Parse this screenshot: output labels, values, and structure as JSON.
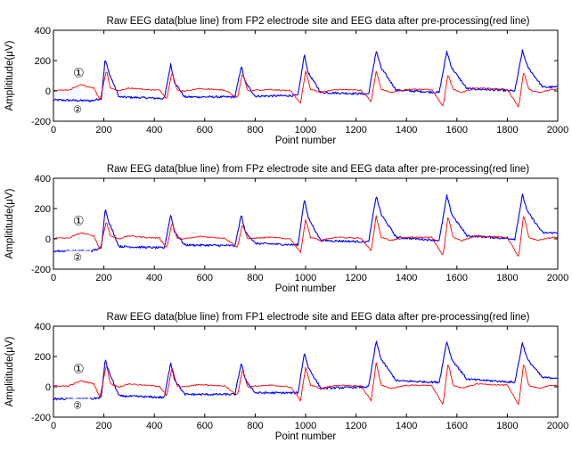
{
  "chart_data": [
    {
      "type": "line",
      "title": "Raw EEG data(blue line) from FP2 electrode site and EEG data after pre-processing(red line)",
      "xlabel": "Point number",
      "ylabel": "Amplititude(μV)",
      "xlim": [
        0,
        2000
      ],
      "ylim": [
        -200,
        400
      ],
      "xticks": [
        0,
        200,
        400,
        600,
        800,
        1000,
        1200,
        1400,
        1600,
        1800,
        2000
      ],
      "yticks": [
        -200,
        0,
        200,
        400
      ],
      "grid": false,
      "annotations": [
        "①",
        "②"
      ],
      "series": [
        {
          "color": "#0000ff",
          "x": [
            0,
            150,
            190,
            205,
            220,
            260,
            440,
            465,
            480,
            520,
            720,
            745,
            760,
            800,
            970,
            995,
            1010,
            1060,
            1250,
            1280,
            1300,
            1360,
            1530,
            1560,
            1580,
            1640,
            1830,
            1860,
            1880,
            1940,
            2000
          ],
          "y": [
            -60,
            -65,
            -50,
            210,
            120,
            -40,
            -50,
            175,
            60,
            -40,
            -40,
            165,
            60,
            -35,
            -30,
            240,
            120,
            -10,
            -20,
            265,
            150,
            5,
            -10,
            260,
            150,
            15,
            0,
            265,
            160,
            25,
            25
          ]
        },
        {
          "color": "#ff0000",
          "x": [
            0,
            60,
            110,
            160,
            185,
            210,
            225,
            260,
            300,
            360,
            420,
            450,
            470,
            490,
            520,
            580,
            680,
            730,
            750,
            770,
            800,
            860,
            940,
            980,
            1000,
            1020,
            1060,
            1120,
            1220,
            1260,
            1280,
            1300,
            1340,
            1400,
            1500,
            1545,
            1565,
            1585,
            1620,
            1680,
            1800,
            1845,
            1865,
            1885,
            1920,
            1980,
            2000
          ],
          "y": [
            5,
            5,
            40,
            20,
            -60,
            140,
            20,
            0,
            20,
            10,
            5,
            -50,
            130,
            5,
            0,
            15,
            5,
            -45,
            120,
            0,
            5,
            10,
            0,
            -80,
            130,
            10,
            -10,
            10,
            5,
            -70,
            130,
            10,
            -10,
            10,
            10,
            -100,
            110,
            10,
            -10,
            20,
            10,
            -110,
            130,
            10,
            -10,
            10,
            10
          ]
        }
      ]
    },
    {
      "type": "line",
      "title": "Raw EEG data(blue line) from FPz electrode site and EEG data after pre-processing(red line)",
      "xlabel": "Point number",
      "ylabel": "Amplititude(μV)",
      "xlim": [
        0,
        2000
      ],
      "ylim": [
        -200,
        400
      ],
      "xticks": [
        0,
        200,
        400,
        600,
        800,
        1000,
        1200,
        1400,
        1600,
        1800,
        2000
      ],
      "yticks": [
        -200,
        0,
        200,
        400
      ],
      "grid": false,
      "annotations": [
        "①",
        "②"
      ],
      "series": [
        {
          "color": "#0000ff",
          "x": [
            0,
            150,
            190,
            205,
            220,
            260,
            440,
            465,
            480,
            520,
            720,
            745,
            760,
            800,
            970,
            995,
            1010,
            1060,
            1250,
            1280,
            1300,
            1360,
            1530,
            1560,
            1580,
            1640,
            1830,
            1860,
            1880,
            1940,
            2000
          ],
          "y": [
            -80,
            -80,
            -60,
            200,
            110,
            -50,
            -60,
            160,
            50,
            -40,
            -45,
            160,
            50,
            -30,
            -40,
            265,
            140,
            -10,
            -20,
            285,
            160,
            10,
            -10,
            285,
            160,
            20,
            0,
            290,
            180,
            40,
            40
          ]
        },
        {
          "color": "#ff0000",
          "x": [
            0,
            60,
            110,
            160,
            185,
            210,
            225,
            260,
            300,
            360,
            420,
            450,
            470,
            490,
            520,
            580,
            680,
            730,
            750,
            770,
            800,
            860,
            940,
            980,
            1000,
            1020,
            1060,
            1120,
            1220,
            1260,
            1280,
            1300,
            1340,
            1400,
            1500,
            1545,
            1565,
            1585,
            1620,
            1680,
            1800,
            1845,
            1865,
            1885,
            1920,
            1980,
            2000
          ],
          "y": [
            5,
            5,
            40,
            20,
            -70,
            120,
            20,
            0,
            20,
            10,
            5,
            -60,
            110,
            5,
            0,
            15,
            5,
            -55,
            100,
            0,
            5,
            10,
            0,
            -90,
            130,
            10,
            -10,
            10,
            5,
            -80,
            150,
            10,
            -10,
            10,
            10,
            -110,
            150,
            10,
            -10,
            20,
            10,
            -120,
            160,
            10,
            -10,
            10,
            10
          ]
        }
      ]
    },
    {
      "type": "line",
      "title": "Raw EEG data(blue line) from FP1 electrode site and EEG data after pre-processing(red line)",
      "xlabel": "Point number",
      "ylabel": "Amplititude(μV)",
      "xlim": [
        0,
        2000
      ],
      "ylim": [
        -200,
        400
      ],
      "xticks": [
        0,
        200,
        400,
        600,
        800,
        1000,
        1200,
        1400,
        1600,
        1800,
        2000
      ],
      "yticks": [
        -200,
        0,
        200,
        400
      ],
      "grid": false,
      "annotations": [
        "①",
        "②"
      ],
      "series": [
        {
          "color": "#0000ff",
          "x": [
            0,
            150,
            190,
            205,
            220,
            260,
            440,
            465,
            480,
            520,
            720,
            745,
            760,
            800,
            970,
            995,
            1010,
            1060,
            1250,
            1280,
            1300,
            1360,
            1530,
            1560,
            1580,
            1640,
            1830,
            1860,
            1880,
            1940,
            2000
          ],
          "y": [
            -80,
            -80,
            -70,
            180,
            100,
            -60,
            -70,
            160,
            50,
            -50,
            -50,
            160,
            50,
            -40,
            -40,
            225,
            130,
            -10,
            0,
            300,
            180,
            40,
            30,
            300,
            180,
            50,
            30,
            290,
            180,
            60,
            60
          ]
        },
        {
          "color": "#ff0000",
          "x": [
            0,
            60,
            110,
            160,
            185,
            210,
            225,
            260,
            300,
            360,
            420,
            450,
            470,
            490,
            520,
            580,
            680,
            730,
            750,
            770,
            800,
            860,
            940,
            980,
            1000,
            1020,
            1060,
            1120,
            1220,
            1260,
            1280,
            1300,
            1340,
            1400,
            1500,
            1545,
            1565,
            1585,
            1620,
            1680,
            1800,
            1845,
            1865,
            1885,
            1920,
            1980,
            2000
          ],
          "y": [
            5,
            5,
            40,
            20,
            -70,
            150,
            20,
            0,
            20,
            10,
            5,
            -60,
            130,
            5,
            0,
            15,
            5,
            -55,
            120,
            0,
            5,
            10,
            0,
            -90,
            130,
            10,
            -10,
            10,
            5,
            -90,
            160,
            10,
            -10,
            10,
            10,
            -120,
            160,
            10,
            -10,
            20,
            10,
            -120,
            160,
            10,
            -10,
            10,
            10
          ]
        }
      ]
    }
  ]
}
